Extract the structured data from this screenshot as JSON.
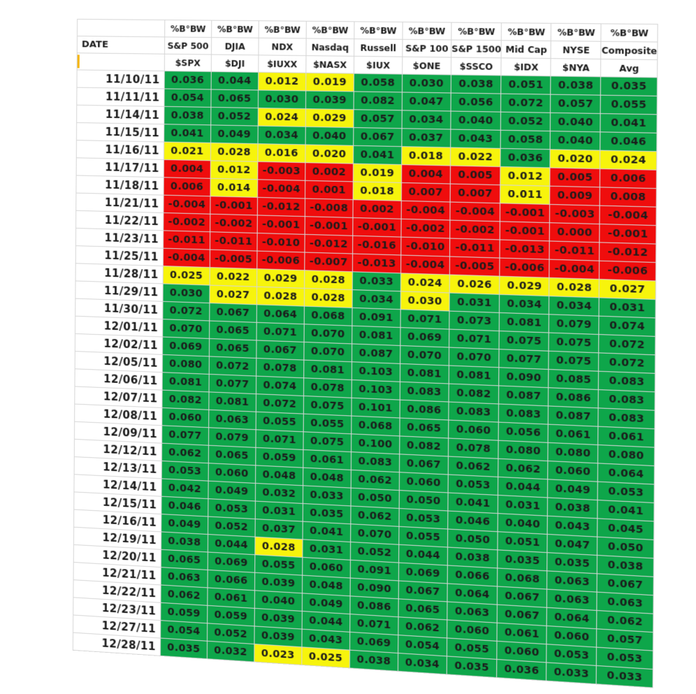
{
  "columns": [
    {
      "metric": "%B°BW",
      "name": "S&P 500",
      "symbol": "$SPX"
    },
    {
      "metric": "%B°BW",
      "name": "DJIA",
      "symbol": "$DJI"
    },
    {
      "metric": "%B°BW",
      "name": "NDX",
      "symbol": "$IUXX"
    },
    {
      "metric": "%B°BW",
      "name": "Nasdaq",
      "symbol": "$NASX"
    },
    {
      "metric": "%B°BW",
      "name": "Russell",
      "symbol": "$IUX"
    },
    {
      "metric": "%B°BW",
      "name": "S&P 100",
      "symbol": "$ONE"
    },
    {
      "metric": "%B°BW",
      "name": "S&P 1500",
      "symbol": "$SSCO"
    },
    {
      "metric": "%B°BW",
      "name": "Mid Cap",
      "symbol": "$IDX"
    },
    {
      "metric": "%B°BW",
      "name": "NYSE",
      "symbol": "$NYA"
    },
    {
      "metric": "%B°BW",
      "name": "Composite",
      "symbol": "Avg"
    }
  ],
  "date_header": "DATE",
  "colors": {
    "green": "#0ea64a",
    "yellow": "#f7f40c",
    "red": "#ef0d0d"
  },
  "rows": [
    {
      "date": "11/10/11",
      "values": [
        "0.036",
        "0.044",
        "0.012",
        "0.019",
        "0.058",
        "0.030",
        "0.038",
        "0.051",
        "0.038",
        "0.035"
      ],
      "fills": [
        "g",
        "g",
        "y",
        "y",
        "g",
        "g",
        "g",
        "g",
        "g",
        "g"
      ]
    },
    {
      "date": "11/11/11",
      "values": [
        "0.054",
        "0.065",
        "0.030",
        "0.039",
        "0.082",
        "0.047",
        "0.056",
        "0.072",
        "0.057",
        "0.055"
      ],
      "fills": [
        "g",
        "g",
        "g",
        "g",
        "g",
        "g",
        "g",
        "g",
        "g",
        "g"
      ]
    },
    {
      "date": "11/14/11",
      "values": [
        "0.038",
        "0.052",
        "0.024",
        "0.029",
        "0.057",
        "0.034",
        "0.040",
        "0.052",
        "0.040",
        "0.041"
      ],
      "fills": [
        "g",
        "g",
        "y",
        "y",
        "g",
        "g",
        "g",
        "g",
        "g",
        "g"
      ]
    },
    {
      "date": "11/15/11",
      "values": [
        "0.041",
        "0.049",
        "0.034",
        "0.040",
        "0.067",
        "0.037",
        "0.043",
        "0.058",
        "0.040",
        "0.046"
      ],
      "fills": [
        "g",
        "g",
        "g",
        "g",
        "g",
        "g",
        "g",
        "g",
        "g",
        "g"
      ]
    },
    {
      "date": "11/16/11",
      "values": [
        "0.021",
        "0.028",
        "0.016",
        "0.020",
        "0.041",
        "0.018",
        "0.022",
        "0.036",
        "0.020",
        "0.024"
      ],
      "fills": [
        "y",
        "y",
        "y",
        "y",
        "g",
        "y",
        "y",
        "g",
        "y",
        "y"
      ]
    },
    {
      "date": "11/17/11",
      "values": [
        "0.004",
        "0.012",
        "-0.003",
        "0.002",
        "0.019",
        "0.004",
        "0.005",
        "0.012",
        "0.005",
        "0.006"
      ],
      "fills": [
        "r",
        "y",
        "r",
        "r",
        "y",
        "r",
        "r",
        "y",
        "r",
        "r"
      ]
    },
    {
      "date": "11/18/11",
      "values": [
        "0.006",
        "0.014",
        "-0.004",
        "0.001",
        "0.018",
        "0.007",
        "0.007",
        "0.011",
        "0.009",
        "0.008"
      ],
      "fills": [
        "r",
        "y",
        "r",
        "r",
        "y",
        "r",
        "r",
        "y",
        "r",
        "r"
      ]
    },
    {
      "date": "11/21/11",
      "values": [
        "-0.004",
        "-0.001",
        "-0.012",
        "-0.008",
        "0.002",
        "-0.004",
        "-0.004",
        "-0.001",
        "-0.003",
        "-0.004"
      ],
      "fills": [
        "r",
        "r",
        "r",
        "r",
        "r",
        "r",
        "r",
        "r",
        "r",
        "r"
      ]
    },
    {
      "date": "11/22/11",
      "values": [
        "-0.002",
        "-0.002",
        "-0.001",
        "-0.001",
        "-0.001",
        "-0.002",
        "-0.002",
        "-0.001",
        "0.000",
        "-0.001"
      ],
      "fills": [
        "r",
        "r",
        "r",
        "r",
        "r",
        "r",
        "r",
        "r",
        "r",
        "r"
      ]
    },
    {
      "date": "11/23/11",
      "values": [
        "-0.011",
        "-0.011",
        "-0.010",
        "-0.012",
        "-0.016",
        "-0.010",
        "-0.011",
        "-0.013",
        "-0.011",
        "-0.012"
      ],
      "fills": [
        "r",
        "r",
        "r",
        "r",
        "r",
        "r",
        "r",
        "r",
        "r",
        "r"
      ]
    },
    {
      "date": "11/25/11",
      "values": [
        "-0.004",
        "-0.005",
        "-0.006",
        "-0.007",
        "-0.013",
        "-0.004",
        "-0.005",
        "-0.006",
        "-0.004",
        "-0.006"
      ],
      "fills": [
        "r",
        "r",
        "r",
        "r",
        "r",
        "r",
        "r",
        "r",
        "r",
        "r"
      ]
    },
    {
      "date": "11/28/11",
      "values": [
        "0.025",
        "0.022",
        "0.029",
        "0.028",
        "0.033",
        "0.024",
        "0.026",
        "0.029",
        "0.028",
        "0.027"
      ],
      "fills": [
        "y",
        "y",
        "y",
        "y",
        "g",
        "y",
        "y",
        "y",
        "y",
        "y"
      ]
    },
    {
      "date": "11/29/11",
      "values": [
        "0.030",
        "0.027",
        "0.028",
        "0.028",
        "0.034",
        "0.030",
        "0.031",
        "0.034",
        "0.034",
        "0.031"
      ],
      "fills": [
        "g",
        "y",
        "y",
        "y",
        "g",
        "y",
        "g",
        "g",
        "g",
        "g"
      ]
    },
    {
      "date": "11/30/11",
      "values": [
        "0.072",
        "0.067",
        "0.064",
        "0.068",
        "0.091",
        "0.071",
        "0.073",
        "0.081",
        "0.079",
        "0.074"
      ],
      "fills": [
        "g",
        "g",
        "g",
        "g",
        "g",
        "g",
        "g",
        "g",
        "g",
        "g"
      ]
    },
    {
      "date": "12/01/11",
      "values": [
        "0.070",
        "0.065",
        "0.071",
        "0.070",
        "0.081",
        "0.069",
        "0.071",
        "0.075",
        "0.075",
        "0.072"
      ],
      "fills": [
        "g",
        "g",
        "g",
        "g",
        "g",
        "g",
        "g",
        "g",
        "g",
        "g"
      ]
    },
    {
      "date": "12/02/11",
      "values": [
        "0.069",
        "0.065",
        "0.067",
        "0.070",
        "0.087",
        "0.070",
        "0.070",
        "0.077",
        "0.075",
        "0.072"
      ],
      "fills": [
        "g",
        "g",
        "g",
        "g",
        "g",
        "g",
        "g",
        "g",
        "g",
        "g"
      ]
    },
    {
      "date": "12/05/11",
      "values": [
        "0.080",
        "0.072",
        "0.078",
        "0.081",
        "0.103",
        "0.081",
        "0.081",
        "0.090",
        "0.085",
        "0.083"
      ],
      "fills": [
        "g",
        "g",
        "g",
        "g",
        "g",
        "g",
        "g",
        "g",
        "g",
        "g"
      ]
    },
    {
      "date": "12/06/11",
      "values": [
        "0.081",
        "0.077",
        "0.074",
        "0.078",
        "0.103",
        "0.083",
        "0.082",
        "0.087",
        "0.086",
        "0.083"
      ],
      "fills": [
        "g",
        "g",
        "g",
        "g",
        "g",
        "g",
        "g",
        "g",
        "g",
        "g"
      ]
    },
    {
      "date": "12/07/11",
      "values": [
        "0.082",
        "0.081",
        "0.072",
        "0.075",
        "0.101",
        "0.086",
        "0.083",
        "0.083",
        "0.087",
        "0.083"
      ],
      "fills": [
        "g",
        "g",
        "g",
        "g",
        "g",
        "g",
        "g",
        "g",
        "g",
        "g"
      ]
    },
    {
      "date": "12/08/11",
      "values": [
        "0.060",
        "0.063",
        "0.055",
        "0.055",
        "0.068",
        "0.065",
        "0.060",
        "0.056",
        "0.061",
        "0.061"
      ],
      "fills": [
        "g",
        "g",
        "g",
        "g",
        "g",
        "g",
        "g",
        "g",
        "g",
        "g"
      ]
    },
    {
      "date": "12/09/11",
      "values": [
        "0.077",
        "0.079",
        "0.071",
        "0.075",
        "0.100",
        "0.082",
        "0.078",
        "0.080",
        "0.080",
        "0.080"
      ],
      "fills": [
        "g",
        "g",
        "g",
        "g",
        "g",
        "g",
        "g",
        "g",
        "g",
        "g"
      ]
    },
    {
      "date": "12/12/11",
      "values": [
        "0.062",
        "0.065",
        "0.059",
        "0.061",
        "0.083",
        "0.067",
        "0.062",
        "0.062",
        "0.060",
        "0.064"
      ],
      "fills": [
        "g",
        "g",
        "g",
        "g",
        "g",
        "g",
        "g",
        "g",
        "g",
        "g"
      ]
    },
    {
      "date": "12/13/11",
      "values": [
        "0.053",
        "0.060",
        "0.048",
        "0.048",
        "0.062",
        "0.060",
        "0.053",
        "0.044",
        "0.049",
        "0.053"
      ],
      "fills": [
        "g",
        "g",
        "g",
        "g",
        "g",
        "g",
        "g",
        "g",
        "g",
        "g"
      ]
    },
    {
      "date": "12/14/11",
      "values": [
        "0.042",
        "0.049",
        "0.032",
        "0.033",
        "0.050",
        "0.050",
        "0.041",
        "0.031",
        "0.038",
        "0.041"
      ],
      "fills": [
        "g",
        "g",
        "g",
        "g",
        "g",
        "g",
        "g",
        "g",
        "g",
        "g"
      ]
    },
    {
      "date": "12/15/11",
      "values": [
        "0.046",
        "0.053",
        "0.031",
        "0.035",
        "0.062",
        "0.053",
        "0.046",
        "0.040",
        "0.043",
        "0.045"
      ],
      "fills": [
        "g",
        "g",
        "g",
        "g",
        "g",
        "g",
        "g",
        "g",
        "g",
        "g"
      ]
    },
    {
      "date": "12/16/11",
      "values": [
        "0.049",
        "0.052",
        "0.037",
        "0.041",
        "0.070",
        "0.055",
        "0.050",
        "0.051",
        "0.047",
        "0.050"
      ],
      "fills": [
        "g",
        "g",
        "g",
        "g",
        "g",
        "g",
        "g",
        "g",
        "g",
        "g"
      ]
    },
    {
      "date": "12/19/11",
      "values": [
        "0.038",
        "0.044",
        "0.028",
        "0.031",
        "0.052",
        "0.044",
        "0.038",
        "0.035",
        "0.035",
        "0.038"
      ],
      "fills": [
        "g",
        "g",
        "y",
        "g",
        "g",
        "g",
        "g",
        "g",
        "g",
        "g"
      ]
    },
    {
      "date": "12/20/11",
      "values": [
        "0.065",
        "0.069",
        "0.055",
        "0.060",
        "0.091",
        "0.069",
        "0.066",
        "0.068",
        "0.063",
        "0.067"
      ],
      "fills": [
        "g",
        "g",
        "g",
        "g",
        "g",
        "g",
        "g",
        "g",
        "g",
        "g"
      ]
    },
    {
      "date": "12/21/11",
      "values": [
        "0.063",
        "0.066",
        "0.039",
        "0.048",
        "0.090",
        "0.067",
        "0.064",
        "0.067",
        "0.063",
        "0.063"
      ],
      "fills": [
        "g",
        "g",
        "g",
        "g",
        "g",
        "g",
        "g",
        "g",
        "g",
        "g"
      ]
    },
    {
      "date": "12/22/11",
      "values": [
        "0.062",
        "0.061",
        "0.040",
        "0.049",
        "0.086",
        "0.065",
        "0.063",
        "0.067",
        "0.064",
        "0.062"
      ],
      "fills": [
        "g",
        "g",
        "g",
        "g",
        "g",
        "g",
        "g",
        "g",
        "g",
        "g"
      ]
    },
    {
      "date": "12/23/11",
      "values": [
        "0.059",
        "0.059",
        "0.039",
        "0.044",
        "0.071",
        "0.062",
        "0.060",
        "0.061",
        "0.060",
        "0.057"
      ],
      "fills": [
        "g",
        "g",
        "g",
        "g",
        "g",
        "g",
        "g",
        "g",
        "g",
        "g"
      ]
    },
    {
      "date": "12/27/11",
      "values": [
        "0.054",
        "0.052",
        "0.039",
        "0.043",
        "0.069",
        "0.054",
        "0.055",
        "0.060",
        "0.053",
        "0.053"
      ],
      "fills": [
        "g",
        "g",
        "g",
        "g",
        "g",
        "g",
        "g",
        "g",
        "g",
        "g"
      ]
    },
    {
      "date": "12/28/11",
      "values": [
        "0.035",
        "0.032",
        "0.023",
        "0.025",
        "0.038",
        "0.034",
        "0.035",
        "0.036",
        "0.033",
        "0.033"
      ],
      "fills": [
        "g",
        "g",
        "y",
        "y",
        "g",
        "g",
        "g",
        "g",
        "g",
        "g"
      ]
    }
  ]
}
